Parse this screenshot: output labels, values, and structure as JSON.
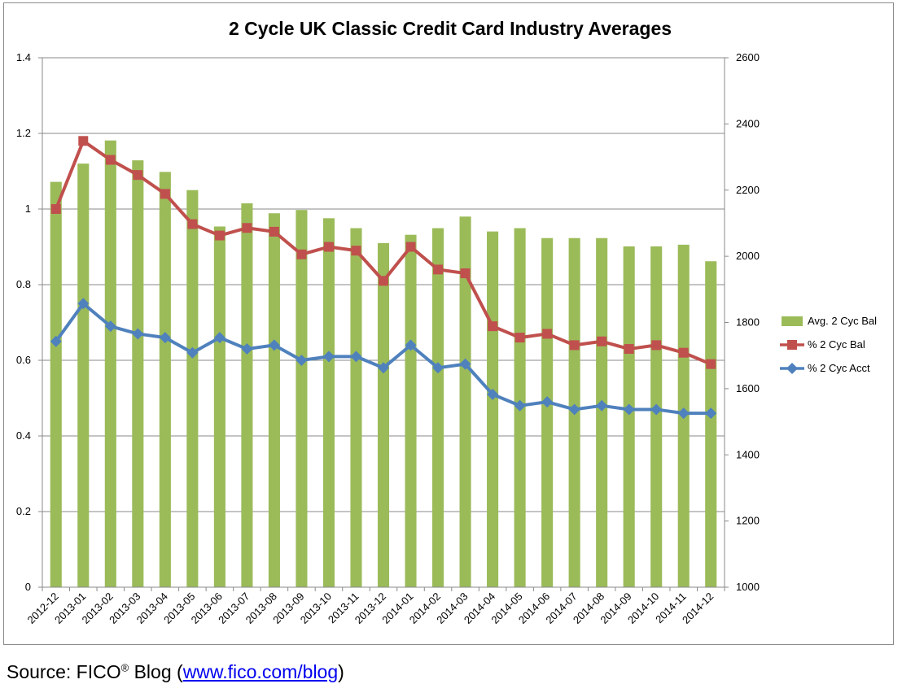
{
  "chart_data": {
    "type": "bar+line",
    "title": "2 Cycle UK Classic Credit Card Industry Averages",
    "categories": [
      "2012-12",
      "2013-01",
      "2013-02",
      "2013-03",
      "2013-04",
      "2013-05",
      "2013-06",
      "2013-07",
      "2013-08",
      "2013-09",
      "2013-10",
      "2013-11",
      "2013-12",
      "2014-01",
      "2014-02",
      "2014-03",
      "2014-04",
      "2014-05",
      "2014-06",
      "2014-07",
      "2014-08",
      "2014-09",
      "2014-10",
      "2014-11",
      "2014-12"
    ],
    "left_axis": {
      "ylim": [
        0,
        1.4
      ],
      "ticks": [
        "0",
        "0.2",
        "0.4",
        "0.6",
        "0.8",
        "1",
        "1.2",
        "1.4"
      ]
    },
    "right_axis": {
      "ylim": [
        1000,
        2600
      ],
      "ticks": [
        "1000",
        "1200",
        "1400",
        "1600",
        "1800",
        "2000",
        "2200",
        "2400",
        "2600"
      ]
    },
    "grid": "horizontal",
    "legend_position": "right",
    "series": [
      {
        "name": "Avg. 2 Cyc Bal",
        "type": "bar",
        "axis": "right",
        "color": "#9bbb59",
        "values": [
          2225,
          2280,
          2350,
          2290,
          2255,
          2200,
          2090,
          2160,
          2130,
          2140,
          2115,
          2085,
          2040,
          2065,
          2085,
          2120,
          2075,
          2085,
          2055,
          2055,
          2055,
          2030,
          2030,
          2035,
          1985
        ]
      },
      {
        "name": "% 2 Cyc Bal",
        "type": "line",
        "axis": "left",
        "color": "#c0504d",
        "marker": "square",
        "values": [
          1.0,
          1.18,
          1.13,
          1.09,
          1.04,
          0.96,
          0.93,
          0.95,
          0.94,
          0.88,
          0.9,
          0.89,
          0.81,
          0.9,
          0.84,
          0.83,
          0.69,
          0.66,
          0.67,
          0.64,
          0.65,
          0.63,
          0.64,
          0.62,
          0.59
        ]
      },
      {
        "name": "% 2 Cyc Acct",
        "type": "line",
        "axis": "left",
        "color": "#4f81bd",
        "marker": "diamond",
        "values": [
          0.65,
          0.75,
          0.69,
          0.67,
          0.66,
          0.62,
          0.66,
          0.63,
          0.64,
          0.6,
          0.61,
          0.61,
          0.58,
          0.64,
          0.58,
          0.59,
          0.51,
          0.48,
          0.49,
          0.47,
          0.48,
          0.47,
          0.47,
          0.46,
          0.46
        ]
      }
    ]
  },
  "source": {
    "prefix": "Source: FICO",
    "registered": "®",
    "middle": " Blog (",
    "link_text": "www.fico.com/blog",
    "suffix": ")"
  }
}
